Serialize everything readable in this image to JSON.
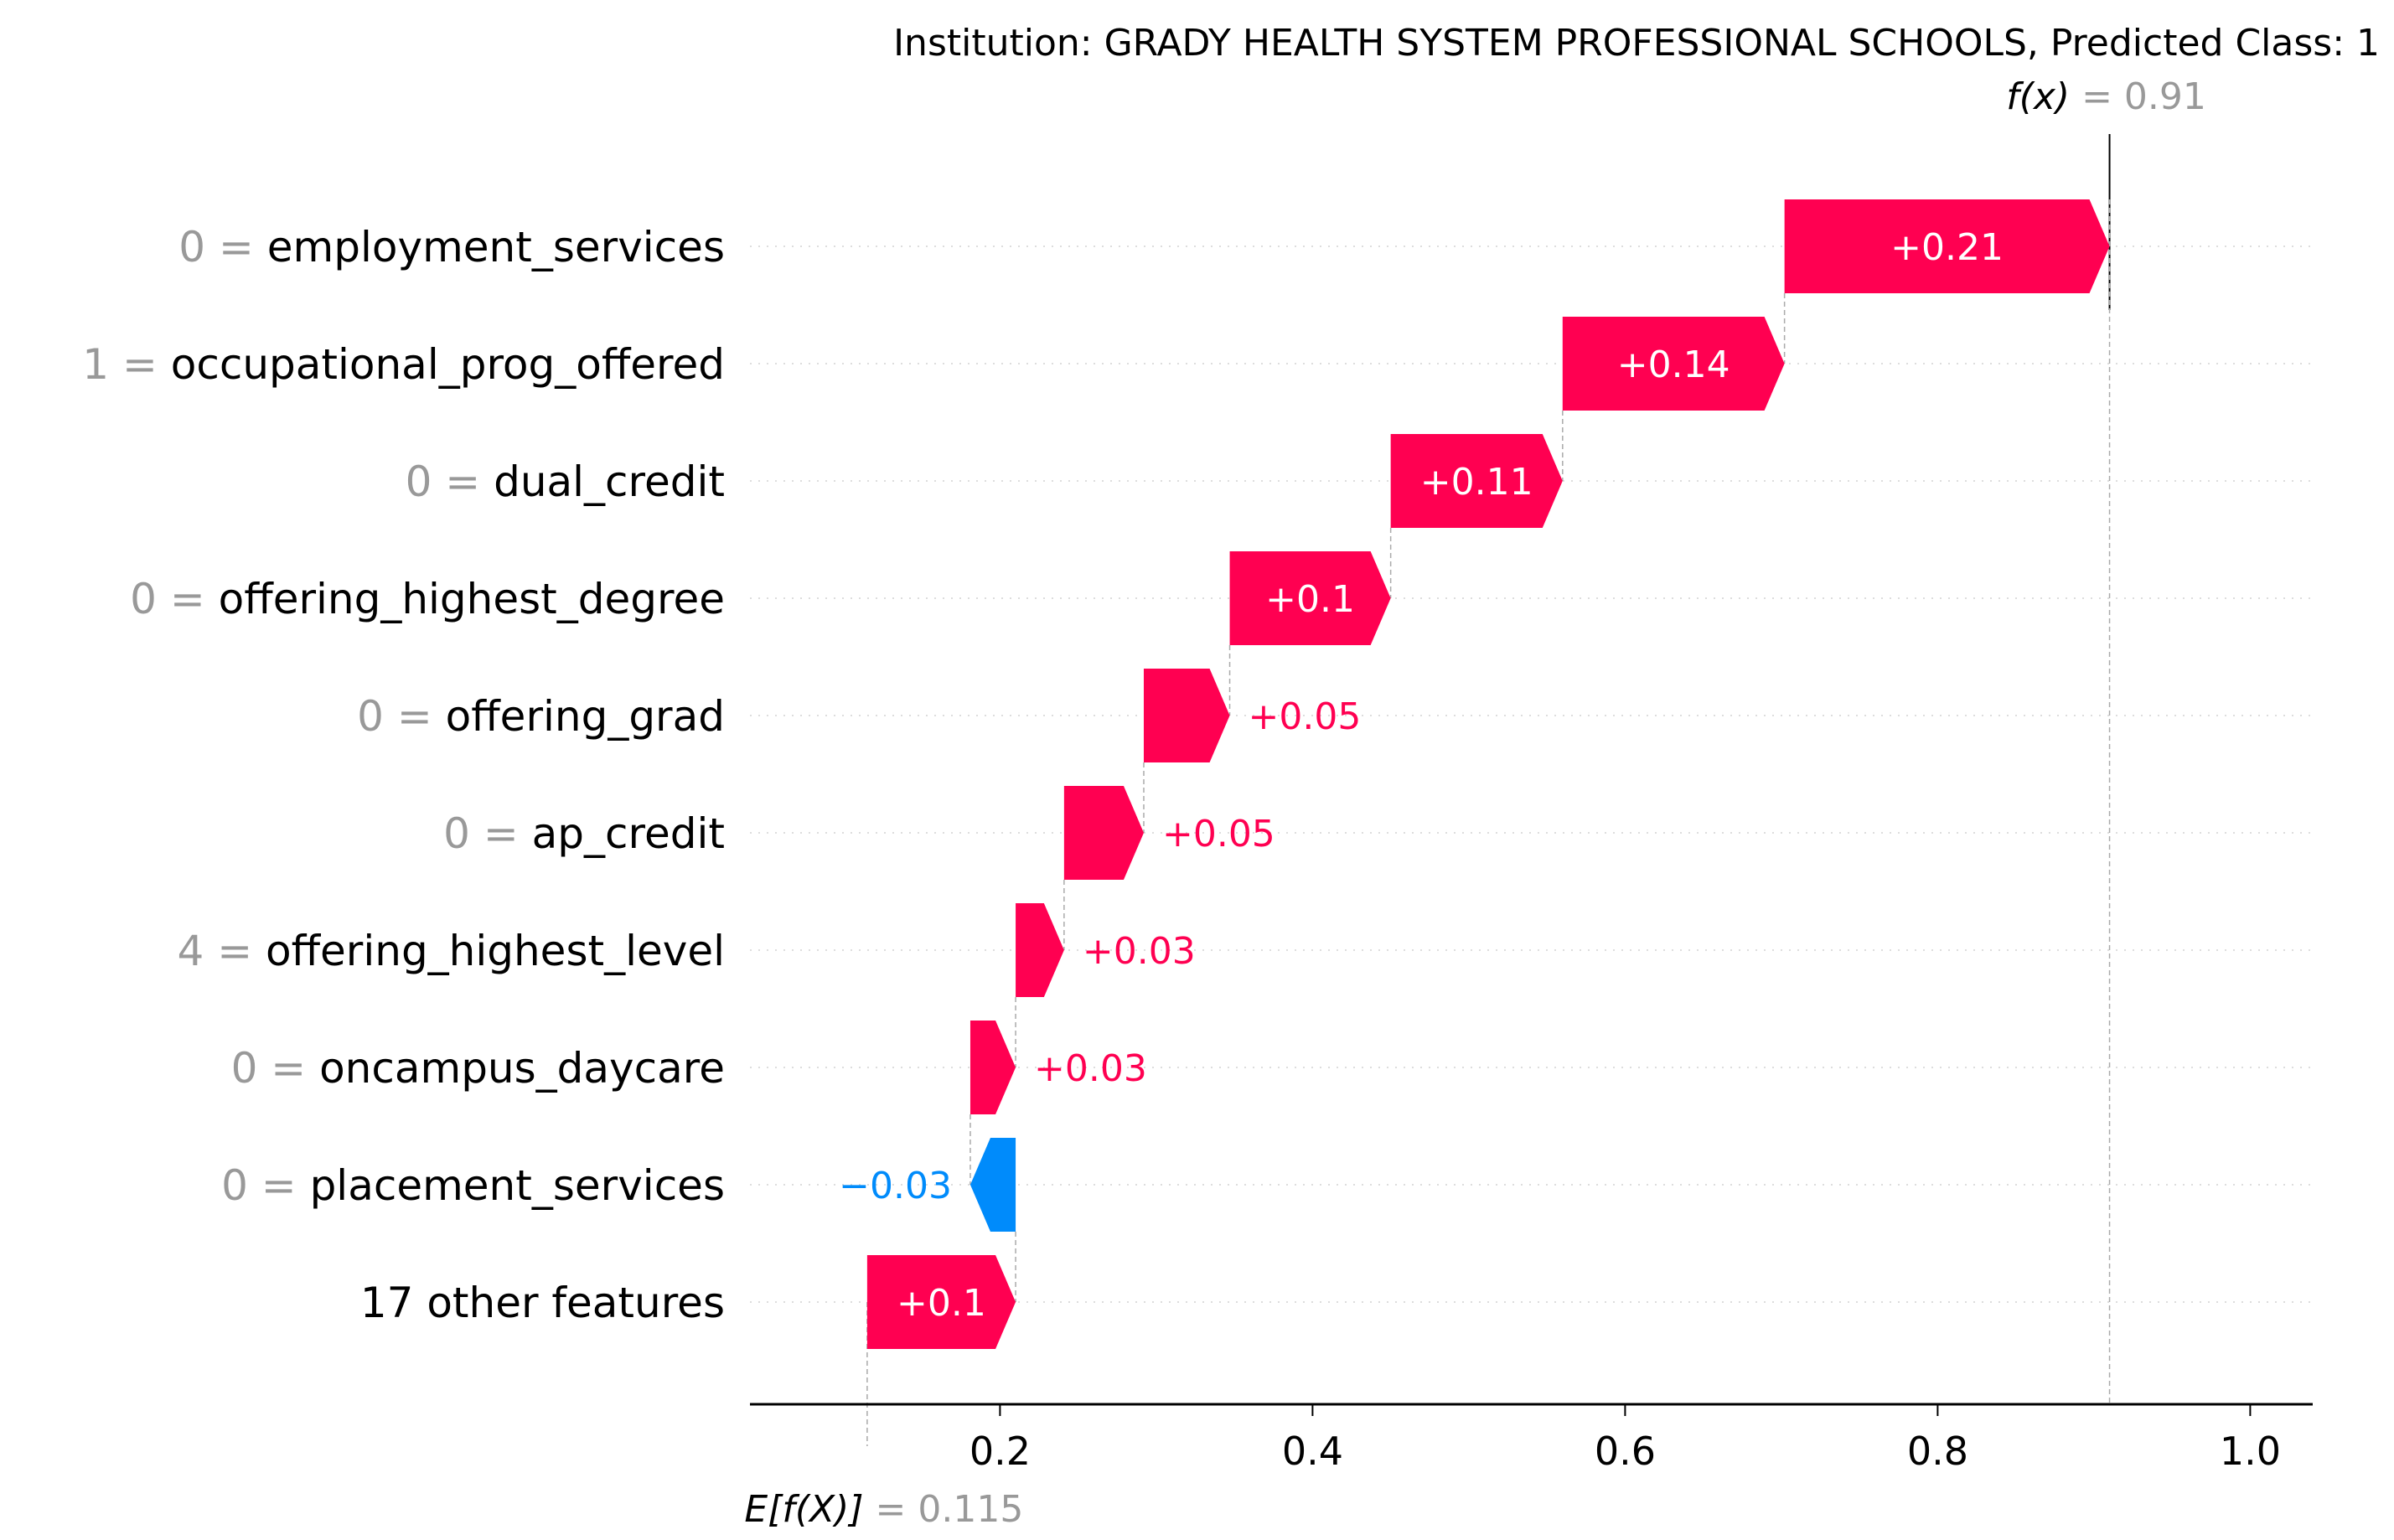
{
  "chart_data": {
    "type": "waterfall",
    "title": "Institution: GRADY HEALTH SYSTEM PROFESSIONAL SCHOOLS, Predicted Class: 1",
    "base_value": 0.115,
    "base_label": "E[f(X)]",
    "base_value_text": "= 0.115",
    "output_value": 0.91,
    "output_label": "f(x)",
    "output_value_text": "= 0.91",
    "xlim": [
      0.04,
      1.04
    ],
    "xticks": [
      0.2,
      0.4,
      0.6,
      0.8,
      1.0
    ],
    "xtick_labels": [
      "0.2",
      "0.4",
      "0.6",
      "0.8",
      "1.0"
    ],
    "positive_color": "#ff0051",
    "negative_color": "#008bfb",
    "features": [
      {
        "value": "0",
        "name": "employment_services",
        "start": 0.702,
        "end": 0.91,
        "label": "+0.21"
      },
      {
        "value": "1",
        "name": "occupational_prog_offered",
        "start": 0.56,
        "end": 0.702,
        "label": "+0.14"
      },
      {
        "value": "0",
        "name": "dual_credit",
        "start": 0.45,
        "end": 0.56,
        "label": "+0.11"
      },
      {
        "value": "0",
        "name": "offering_highest_degree",
        "start": 0.347,
        "end": 0.45,
        "label": "+0.1"
      },
      {
        "value": "0",
        "name": "offering_grad",
        "start": 0.292,
        "end": 0.347,
        "label": "+0.05"
      },
      {
        "value": "0",
        "name": "ap_credit",
        "start": 0.241,
        "end": 0.292,
        "label": "+0.05"
      },
      {
        "value": "4",
        "name": "offering_highest_level",
        "start": 0.21,
        "end": 0.241,
        "label": "+0.03"
      },
      {
        "value": "0",
        "name": "oncampus_daycare",
        "start": 0.181,
        "end": 0.21,
        "label": "+0.03"
      },
      {
        "value": "0",
        "name": "placement_services",
        "start": 0.21,
        "end": 0.181,
        "label": "−0.03"
      },
      {
        "value": "",
        "name": "17 other features",
        "start": 0.115,
        "end": 0.21,
        "label": "+0.1"
      }
    ]
  }
}
